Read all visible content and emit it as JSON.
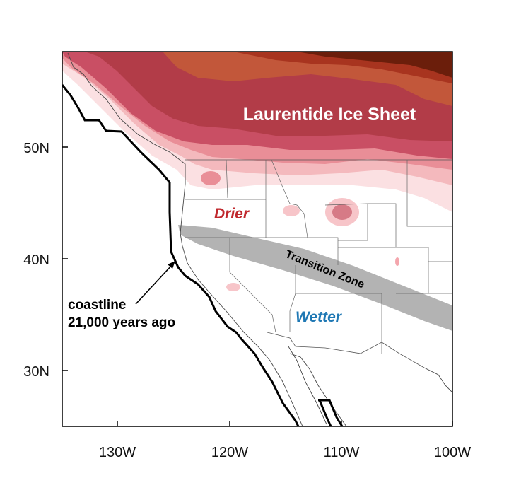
{
  "map": {
    "labels": {
      "ice_sheet": "Laurentide Ice Sheet",
      "drier": "Drier",
      "wetter": "Wetter",
      "transition": "Transition Zone",
      "coastline_line1": "coastline",
      "coastline_line2": "21,000 years ago"
    },
    "lat_ticks": [
      "50N",
      "40N",
      "30N"
    ],
    "lon_ticks": [
      "130W",
      "120W",
      "110W",
      "100W"
    ],
    "colors": {
      "drier_text": "#c0282d",
      "wetter_text": "#1f78b4",
      "transition_band": "#b3b3b3",
      "ice_darkest": "#6b1e0b",
      "ice_dark": "#a5322a",
      "ice_mid": "#c24c55",
      "ice_light": "#e9a0a6",
      "ice_lightest": "#f9d6d8"
    }
  }
}
